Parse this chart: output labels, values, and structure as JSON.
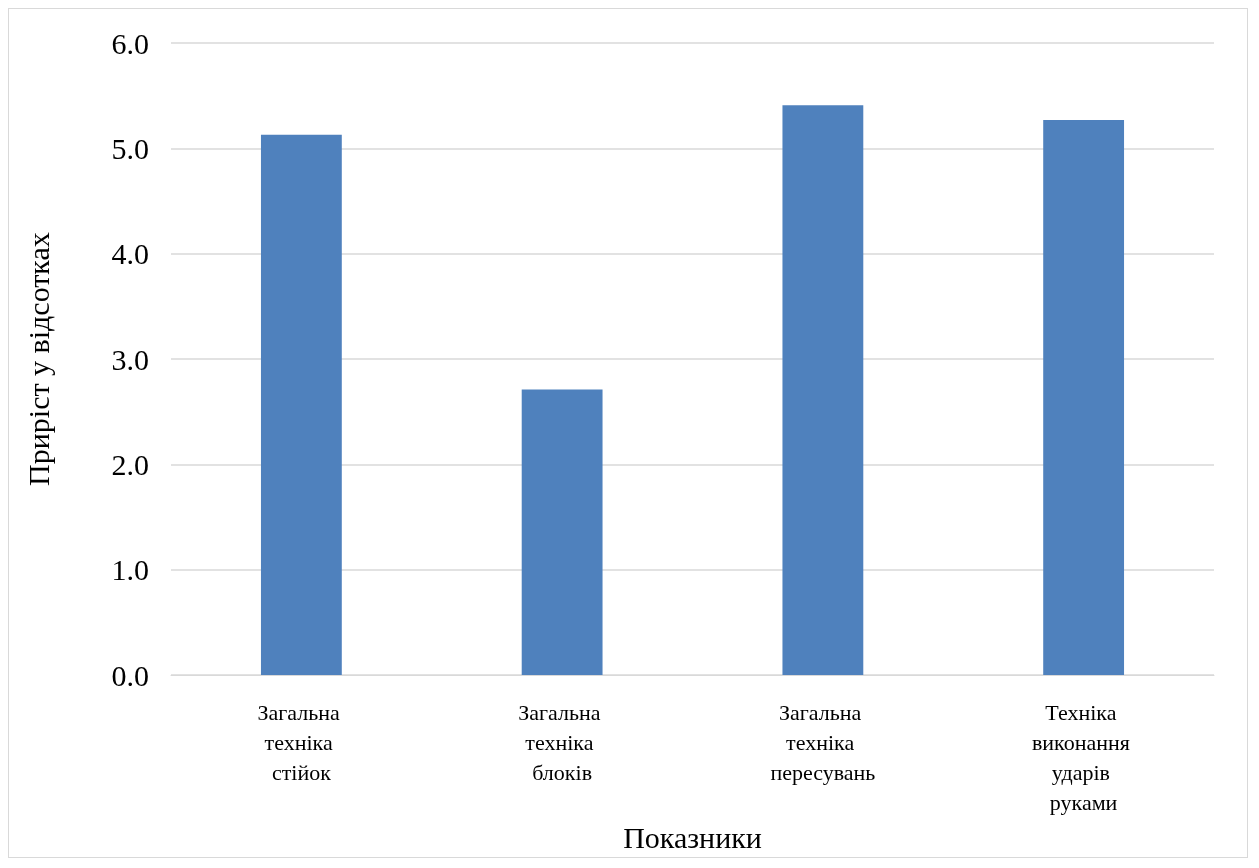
{
  "chart_data": {
    "type": "bar",
    "xlabel": "Показники",
    "ylabel": "Приріст у відсотках",
    "categories": [
      "Загальна техніка стійок",
      "Загальна техніка блоків",
      "Загальна техніка пересувань",
      "Техніка виконання ударів руками"
    ],
    "values": [
      5.13,
      2.71,
      5.41,
      5.27
    ],
    "color": "#4f81bd",
    "ylim": [
      0,
      6
    ],
    "yticks": [
      {
        "value": 0,
        "label": "0.0"
      },
      {
        "value": 1,
        "label": "1.0"
      },
      {
        "value": 2,
        "label": "2.0"
      },
      {
        "value": 3,
        "label": "3.0"
      },
      {
        "value": 4,
        "label": "4.0"
      },
      {
        "value": 5,
        "label": "5.0"
      },
      {
        "value": 6,
        "label": "6.0"
      }
    ],
    "grid": "y"
  }
}
